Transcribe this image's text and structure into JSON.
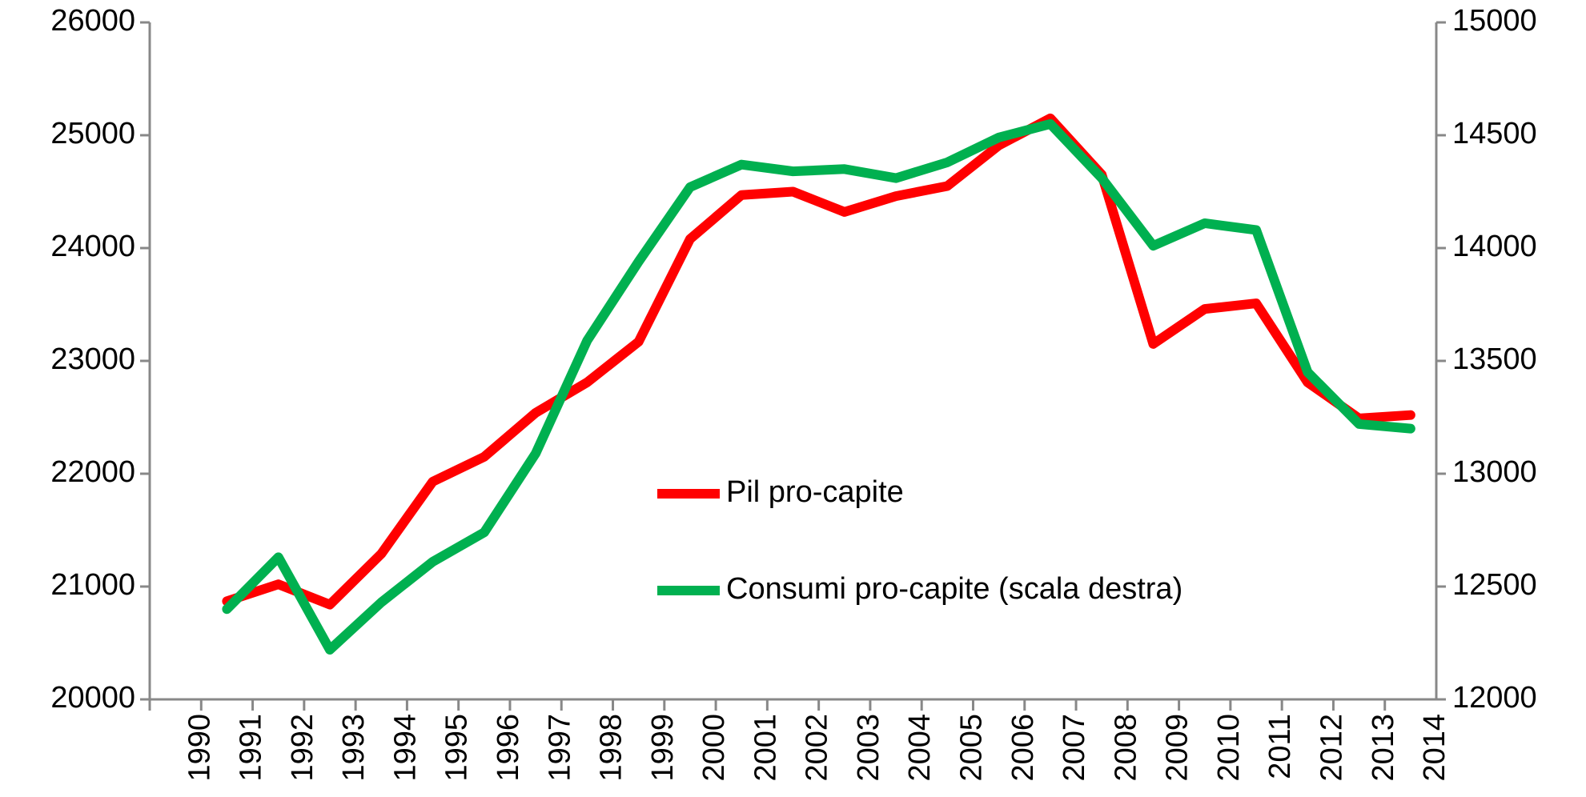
{
  "chart_data": {
    "type": "line",
    "categories": [
      "1990",
      "1991",
      "1992",
      "1993",
      "1994",
      "1995",
      "1996",
      "1997",
      "1998",
      "1999",
      "2000",
      "2001",
      "2002",
      "2003",
      "2004",
      "2005",
      "2006",
      "2007",
      "2008",
      "2009",
      "2010",
      "2011",
      "2012",
      "2013",
      "2014"
    ],
    "series": [
      {
        "name": "Pil pro-capite",
        "color": "#ff0000",
        "values": [
          20870,
          21020,
          20840,
          21290,
          21930,
          22150,
          22540,
          22810,
          23170,
          24080,
          24470,
          24500,
          24320,
          24460,
          24550,
          24910,
          25150,
          24650,
          23150,
          23460,
          23510,
          22810,
          22490,
          22520,
          null
        ]
      },
      {
        "name": "Consumi pro-capite (scala destra)",
        "color": "#00b050",
        "axis": "y2",
        "values": [
          12400,
          12630,
          12220,
          12430,
          12610,
          12740,
          13090,
          13590,
          13940,
          14270,
          14370,
          14340,
          14350,
          14310,
          14380,
          14490,
          14550,
          14310,
          14010,
          14110,
          14080,
          13450,
          13220,
          13200,
          null
        ]
      }
    ],
    "ylim": [
      20000,
      26000
    ],
    "yticks": [
      20000,
      21000,
      22000,
      23000,
      24000,
      25000,
      26000
    ],
    "y2lim": [
      12000,
      15000
    ],
    "y2ticks": [
      12000,
      12500,
      13000,
      13500,
      14000,
      14500,
      15000
    ],
    "grid": false
  }
}
